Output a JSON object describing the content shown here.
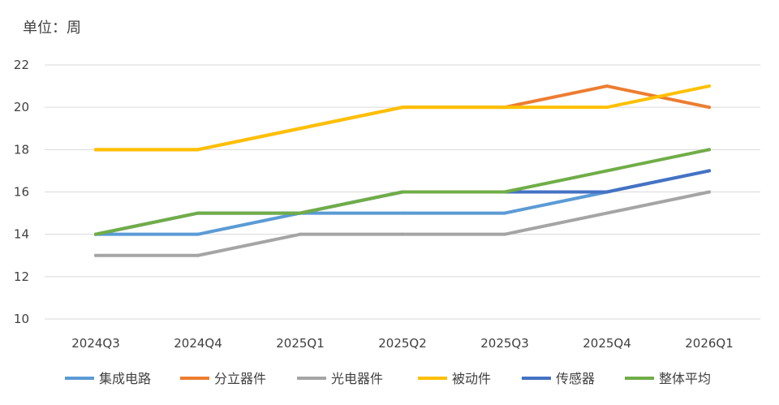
{
  "chart_data": {
    "type": "line",
    "unit_label": "单位：周",
    "categories": [
      "2024Q3",
      "2024Q4",
      "2025Q1",
      "2025Q2",
      "2025Q3",
      "2025Q4",
      "2026Q1"
    ],
    "ylim": [
      10,
      22
    ],
    "yticks": [
      "10",
      "12",
      "14",
      "16",
      "18",
      "20",
      "22"
    ],
    "grid": true,
    "legend_position": "bottom",
    "series": [
      {
        "name": "集成电路",
        "color": "#5B9BD5",
        "values": [
          14,
          14,
          15,
          15,
          15,
          16,
          17
        ]
      },
      {
        "name": "分立器件",
        "color": "#ED7D31",
        "values": [
          18,
          18,
          19,
          20,
          20,
          21,
          20
        ]
      },
      {
        "name": "光电器件",
        "color": "#A5A5A5",
        "values": [
          13,
          13,
          14,
          14,
          14,
          15,
          16
        ]
      },
      {
        "name": "被动件",
        "color": "#FFC000",
        "values": [
          18,
          18,
          19,
          20,
          20,
          20,
          21
        ]
      },
      {
        "name": "传感器",
        "color": "#4472C4",
        "values": [
          14,
          15,
          15,
          16,
          16,
          16,
          17
        ]
      },
      {
        "name": "整体平均",
        "color": "#70AD47",
        "values": [
          14,
          15,
          15,
          16,
          16,
          17,
          18
        ]
      }
    ]
  }
}
